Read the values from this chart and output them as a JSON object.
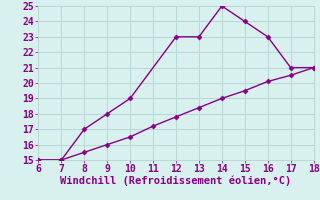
{
  "line1_x": [
    6,
    7,
    8,
    9,
    10,
    12,
    13,
    14,
    15,
    16,
    17,
    18
  ],
  "line1_y": [
    15,
    15,
    17,
    18,
    19,
    23,
    23,
    25,
    24,
    23,
    21,
    21
  ],
  "line2_x": [
    6,
    7,
    8,
    9,
    10,
    11,
    12,
    13,
    14,
    15,
    16,
    17,
    18
  ],
  "line2_y": [
    15,
    15,
    15.5,
    16,
    16.5,
    17.2,
    17.8,
    18.4,
    19.0,
    19.5,
    20.1,
    20.5,
    21
  ],
  "line_color": "#880088",
  "marker": "D",
  "markersize": 2.5,
  "linewidth": 1.0,
  "xlabel": "Windchill (Refroidissement éolien,°C)",
  "xlim": [
    6,
    18
  ],
  "ylim": [
    15,
    25
  ],
  "yticks": [
    15,
    16,
    17,
    18,
    19,
    20,
    21,
    22,
    23,
    24,
    25
  ],
  "xticks": [
    6,
    7,
    8,
    9,
    10,
    11,
    12,
    13,
    14,
    15,
    16,
    17,
    18
  ],
  "bg_color": "#d8f0ee",
  "grid_color": "#b8d8d4",
  "xlabel_fontsize": 7.5,
  "tick_fontsize": 7
}
